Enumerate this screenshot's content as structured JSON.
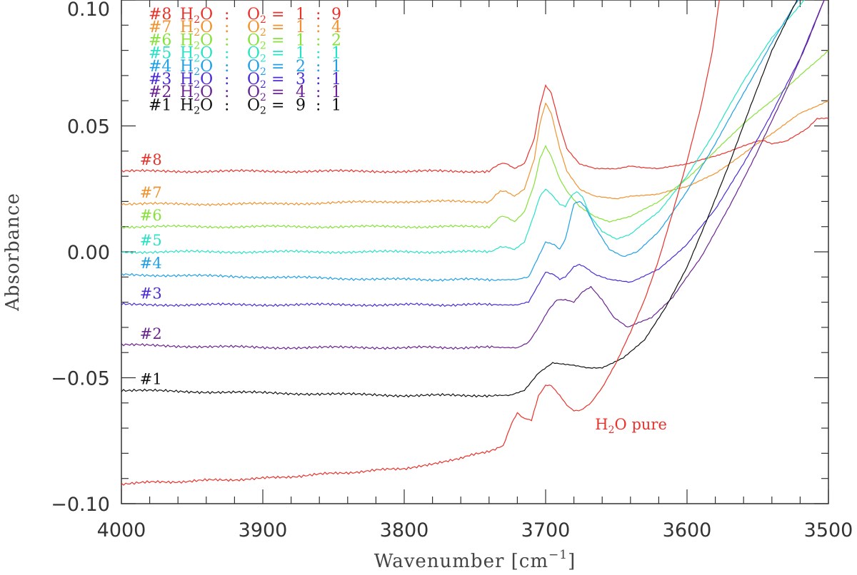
{
  "chart_data": {
    "type": "line",
    "title": "",
    "xlabel": "Wavenumber [cm",
    "xlabel_sup": "−1",
    "xlabel_close": "]",
    "ylabel": "Absorbance",
    "xlim": [
      4000,
      3500
    ],
    "ylim": [
      -0.1,
      0.1
    ],
    "x_reversed": true,
    "x_ticks": [
      4000,
      3900,
      3800,
      3700,
      3600,
      3500
    ],
    "x_tick_labels": [
      "4000",
      "3900",
      "3800",
      "3700",
      "3600",
      "3500"
    ],
    "y_ticks": [
      -0.1,
      -0.05,
      0.0,
      0.05,
      0.1
    ],
    "y_tick_labels": [
      "−0.10",
      "−0.05",
      "0.00",
      "0.05",
      "0.10"
    ],
    "grid": false,
    "legend_position": "top-left",
    "legend": [
      {
        "id": "#8",
        "mol_a": "H",
        "sub_a": "2",
        "tail_a": "O",
        "sep": ":",
        "mol_b": "O",
        "sub_b": "2",
        "eq": "=",
        "ratio_a": "1",
        "colon": ":",
        "ratio_b": "9",
        "color": "#e8322b"
      },
      {
        "id": "#7",
        "mol_a": "H",
        "sub_a": "2",
        "tail_a": "O",
        "sep": ":",
        "mol_b": "O",
        "sub_b": "2",
        "eq": "=",
        "ratio_a": "1",
        "colon": ":",
        "ratio_b": "4",
        "color": "#f0932e"
      },
      {
        "id": "#6",
        "mol_a": "H",
        "sub_a": "2",
        "tail_a": "O",
        "sep": ":",
        "mol_b": "O",
        "sub_b": "2",
        "eq": "=",
        "ratio_a": "1",
        "colon": ":",
        "ratio_b": "2",
        "color": "#86e23a"
      },
      {
        "id": "#5",
        "mol_a": "H",
        "sub_a": "2",
        "tail_a": "O",
        "sep": ":",
        "mol_b": "O",
        "sub_b": "2",
        "eq": "=",
        "ratio_a": "1",
        "colon": ":",
        "ratio_b": "1",
        "color": "#27e3c6"
      },
      {
        "id": "#4",
        "mol_a": "H",
        "sub_a": "2",
        "tail_a": "O",
        "sep": ":",
        "mol_b": "O",
        "sub_b": "2",
        "eq": "=",
        "ratio_a": "2",
        "colon": ":",
        "ratio_b": "1",
        "color": "#1fa0e6"
      },
      {
        "id": "#3",
        "mol_a": "H",
        "sub_a": "2",
        "tail_a": "O",
        "sep": ":",
        "mol_b": "O",
        "sub_b": "2",
        "eq": "=",
        "ratio_a": "3",
        "colon": ":",
        "ratio_b": "1",
        "color": "#4a2bd6"
      },
      {
        "id": "#2",
        "mol_a": "H",
        "sub_a": "2",
        "tail_a": "O",
        "sep": ":",
        "mol_b": "O",
        "sub_b": "2",
        "eq": "=",
        "ratio_a": "4",
        "colon": ":",
        "ratio_b": "1",
        "color": "#6b2390"
      },
      {
        "id": "#1",
        "mol_a": "H",
        "sub_a": "2",
        "tail_a": "O",
        "sep": ":",
        "mol_b": "O",
        "sub_b": "2",
        "eq": "=",
        "ratio_a": "9",
        "colon": ":",
        "ratio_b": "1",
        "color": "#111111"
      }
    ],
    "series": [
      {
        "name": "#8",
        "color": "#e8322b",
        "x": [
          4000,
          3900,
          3800,
          3740,
          3732,
          3728,
          3722,
          3715,
          3708,
          3704,
          3700,
          3696,
          3690,
          3685,
          3676,
          3665,
          3650,
          3640,
          3620,
          3600,
          3580,
          3560,
          3550,
          3545,
          3540,
          3530,
          3515,
          3508,
          3500
        ],
        "y": [
          0.032,
          0.032,
          0.032,
          0.032,
          0.035,
          0.035,
          0.033,
          0.035,
          0.045,
          0.058,
          0.066,
          0.063,
          0.05,
          0.041,
          0.035,
          0.033,
          0.033,
          0.034,
          0.033,
          0.035,
          0.038,
          0.042,
          0.044,
          0.044,
          0.043,
          0.044,
          0.049,
          0.053,
          0.053
        ]
      },
      {
        "name": "#7",
        "color": "#f0932e",
        "x": [
          4000,
          3900,
          3800,
          3740,
          3732,
          3728,
          3722,
          3715,
          3708,
          3704,
          3700,
          3696,
          3690,
          3685,
          3676,
          3665,
          3650,
          3640,
          3620,
          3600,
          3580,
          3560,
          3540,
          3520,
          3500
        ],
        "y": [
          0.019,
          0.019,
          0.02,
          0.02,
          0.024,
          0.024,
          0.022,
          0.025,
          0.037,
          0.051,
          0.059,
          0.055,
          0.041,
          0.032,
          0.025,
          0.022,
          0.021,
          0.022,
          0.023,
          0.026,
          0.031,
          0.039,
          0.047,
          0.055,
          0.06
        ]
      },
      {
        "name": "#6",
        "color": "#86e23a",
        "x": [
          4000,
          3900,
          3800,
          3740,
          3732,
          3728,
          3722,
          3715,
          3708,
          3704,
          3700,
          3696,
          3690,
          3685,
          3676,
          3665,
          3655,
          3640,
          3620,
          3600,
          3580,
          3560,
          3540,
          3520,
          3500
        ],
        "y": [
          0.01,
          0.01,
          0.01,
          0.01,
          0.014,
          0.014,
          0.012,
          0.016,
          0.027,
          0.037,
          0.042,
          0.038,
          0.029,
          0.024,
          0.018,
          0.014,
          0.012,
          0.014,
          0.02,
          0.029,
          0.04,
          0.051,
          0.06,
          0.07,
          0.08
        ]
      },
      {
        "name": "#5",
        "color": "#27e3c6",
        "x": [
          4000,
          3900,
          3800,
          3740,
          3732,
          3728,
          3722,
          3715,
          3708,
          3704,
          3700,
          3696,
          3690,
          3686,
          3682,
          3678,
          3674,
          3668,
          3660,
          3650,
          3640,
          3620,
          3600,
          3580,
          3560,
          3540,
          3520,
          3510
        ],
        "y": [
          0.0,
          0.0,
          0.0,
          0.0,
          0.002,
          0.002,
          0.001,
          0.004,
          0.015,
          0.022,
          0.025,
          0.023,
          0.019,
          0.018,
          0.022,
          0.024,
          0.022,
          0.014,
          0.008,
          0.005,
          0.007,
          0.016,
          0.03,
          0.048,
          0.068,
          0.085,
          0.098,
          0.105
        ]
      },
      {
        "name": "#4",
        "color": "#1fa0e6",
        "x": [
          4000,
          3900,
          3800,
          3720,
          3712,
          3706,
          3700,
          3694,
          3690,
          3686,
          3680,
          3676,
          3672,
          3665,
          3655,
          3645,
          3635,
          3620,
          3600,
          3580,
          3560,
          3540,
          3525,
          3515
        ],
        "y": [
          -0.009,
          -0.01,
          -0.011,
          -0.011,
          -0.01,
          -0.003,
          0.004,
          0.003,
          0.001,
          0.005,
          0.019,
          0.02,
          0.018,
          0.01,
          0.001,
          -0.002,
          0.0,
          0.008,
          0.024,
          0.043,
          0.063,
          0.083,
          0.097,
          0.105
        ]
      },
      {
        "name": "#3",
        "color": "#4a2bd6",
        "x": [
          4000,
          3900,
          3800,
          3720,
          3712,
          3706,
          3700,
          3694,
          3690,
          3686,
          3680,
          3676,
          3672,
          3665,
          3655,
          3640,
          3620,
          3600,
          3580,
          3560,
          3540,
          3520,
          3503
        ],
        "y": [
          -0.021,
          -0.021,
          -0.021,
          -0.021,
          -0.02,
          -0.014,
          -0.008,
          -0.009,
          -0.011,
          -0.01,
          -0.006,
          -0.005,
          -0.006,
          -0.009,
          -0.011,
          -0.012,
          -0.007,
          0.003,
          0.017,
          0.035,
          0.055,
          0.077,
          0.1
        ]
      },
      {
        "name": "#2",
        "color": "#6b2390",
        "x": [
          4000,
          3900,
          3800,
          3720,
          3712,
          3705,
          3698,
          3692,
          3686,
          3680,
          3674,
          3668,
          3660,
          3652,
          3642,
          3625,
          3610,
          3590,
          3570,
          3550,
          3530,
          3515,
          3503
        ],
        "y": [
          -0.037,
          -0.038,
          -0.038,
          -0.038,
          -0.036,
          -0.03,
          -0.023,
          -0.019,
          -0.019,
          -0.02,
          -0.016,
          -0.014,
          -0.019,
          -0.026,
          -0.03,
          -0.026,
          -0.018,
          -0.002,
          0.018,
          0.04,
          0.064,
          0.083,
          0.1
        ]
      },
      {
        "name": "#1",
        "color": "#111111",
        "x": [
          4000,
          3900,
          3800,
          3725,
          3715,
          3705,
          3695,
          3680,
          3670,
          3660,
          3645,
          3630,
          3615,
          3600,
          3585,
          3570,
          3555,
          3540,
          3525,
          3517
        ],
        "y": [
          -0.055,
          -0.056,
          -0.057,
          -0.057,
          -0.055,
          -0.048,
          -0.044,
          -0.045,
          -0.046,
          -0.046,
          -0.042,
          -0.035,
          -0.022,
          -0.006,
          0.014,
          0.035,
          0.058,
          0.08,
          0.097,
          0.105
        ]
      },
      {
        "name": "pure",
        "color": "#e8322b",
        "x": [
          4000,
          3950,
          3900,
          3850,
          3800,
          3760,
          3740,
          3730,
          3724,
          3720,
          3716,
          3710,
          3705,
          3700,
          3696,
          3690,
          3685,
          3680,
          3675,
          3668,
          3660,
          3650,
          3640,
          3630,
          3620,
          3610,
          3600,
          3590,
          3582,
          3576
        ],
        "y": [
          -0.092,
          -0.091,
          -0.09,
          -0.088,
          -0.086,
          -0.082,
          -0.079,
          -0.077,
          -0.068,
          -0.064,
          -0.066,
          -0.067,
          -0.057,
          -0.053,
          -0.053,
          -0.057,
          -0.061,
          -0.063,
          -0.063,
          -0.06,
          -0.054,
          -0.044,
          -0.032,
          -0.019,
          -0.003,
          0.016,
          0.036,
          0.058,
          0.08,
          0.105
        ]
      }
    ],
    "series_labels": [
      {
        "text": "#8",
        "x": 3987,
        "y": 0.0345,
        "color": "#e8322b"
      },
      {
        "text": "#7",
        "x": 3987,
        "y": 0.0215,
        "color": "#f0932e"
      },
      {
        "text": "#6",
        "x": 3987,
        "y": 0.0125,
        "color": "#86e23a"
      },
      {
        "text": "#5",
        "x": 3987,
        "y": 0.0025,
        "color": "#27e3c6"
      },
      {
        "text": "#4",
        "x": 3987,
        "y": -0.0065,
        "color": "#1fa0e6"
      },
      {
        "text": "#3",
        "x": 3987,
        "y": -0.0185,
        "color": "#4a2bd6"
      },
      {
        "text": "#2",
        "x": 3987,
        "y": -0.0345,
        "color": "#6b2390"
      },
      {
        "text": "#1",
        "x": 3987,
        "y": -0.0525,
        "color": "#111111"
      }
    ],
    "annotation": {
      "prefix": "H",
      "sub": "2",
      "suffix": "O pure",
      "x": 3665,
      "y": -0.0705,
      "color": "#e8322b"
    }
  }
}
